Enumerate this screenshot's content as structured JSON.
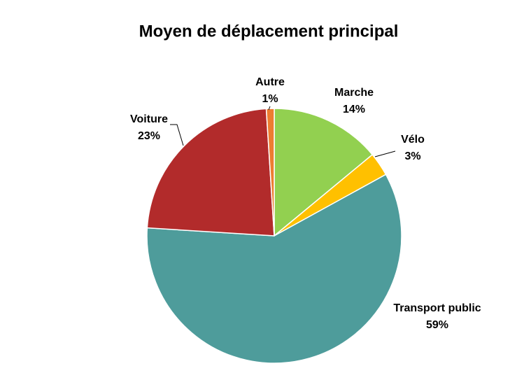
{
  "chart_data": {
    "type": "pie",
    "title": "Moyen de déplacement principal",
    "categories": [
      "Marche",
      "Vélo",
      "Transport public",
      "Voiture",
      "Autre"
    ],
    "values": [
      14,
      3,
      59,
      23,
      1
    ],
    "value_labels": [
      "14%",
      "3%",
      "59%",
      "23%",
      "1%"
    ],
    "colors": [
      "#92d050",
      "#ffc000",
      "#4e9c9b",
      "#b22b2b",
      "#ed7d31"
    ]
  }
}
